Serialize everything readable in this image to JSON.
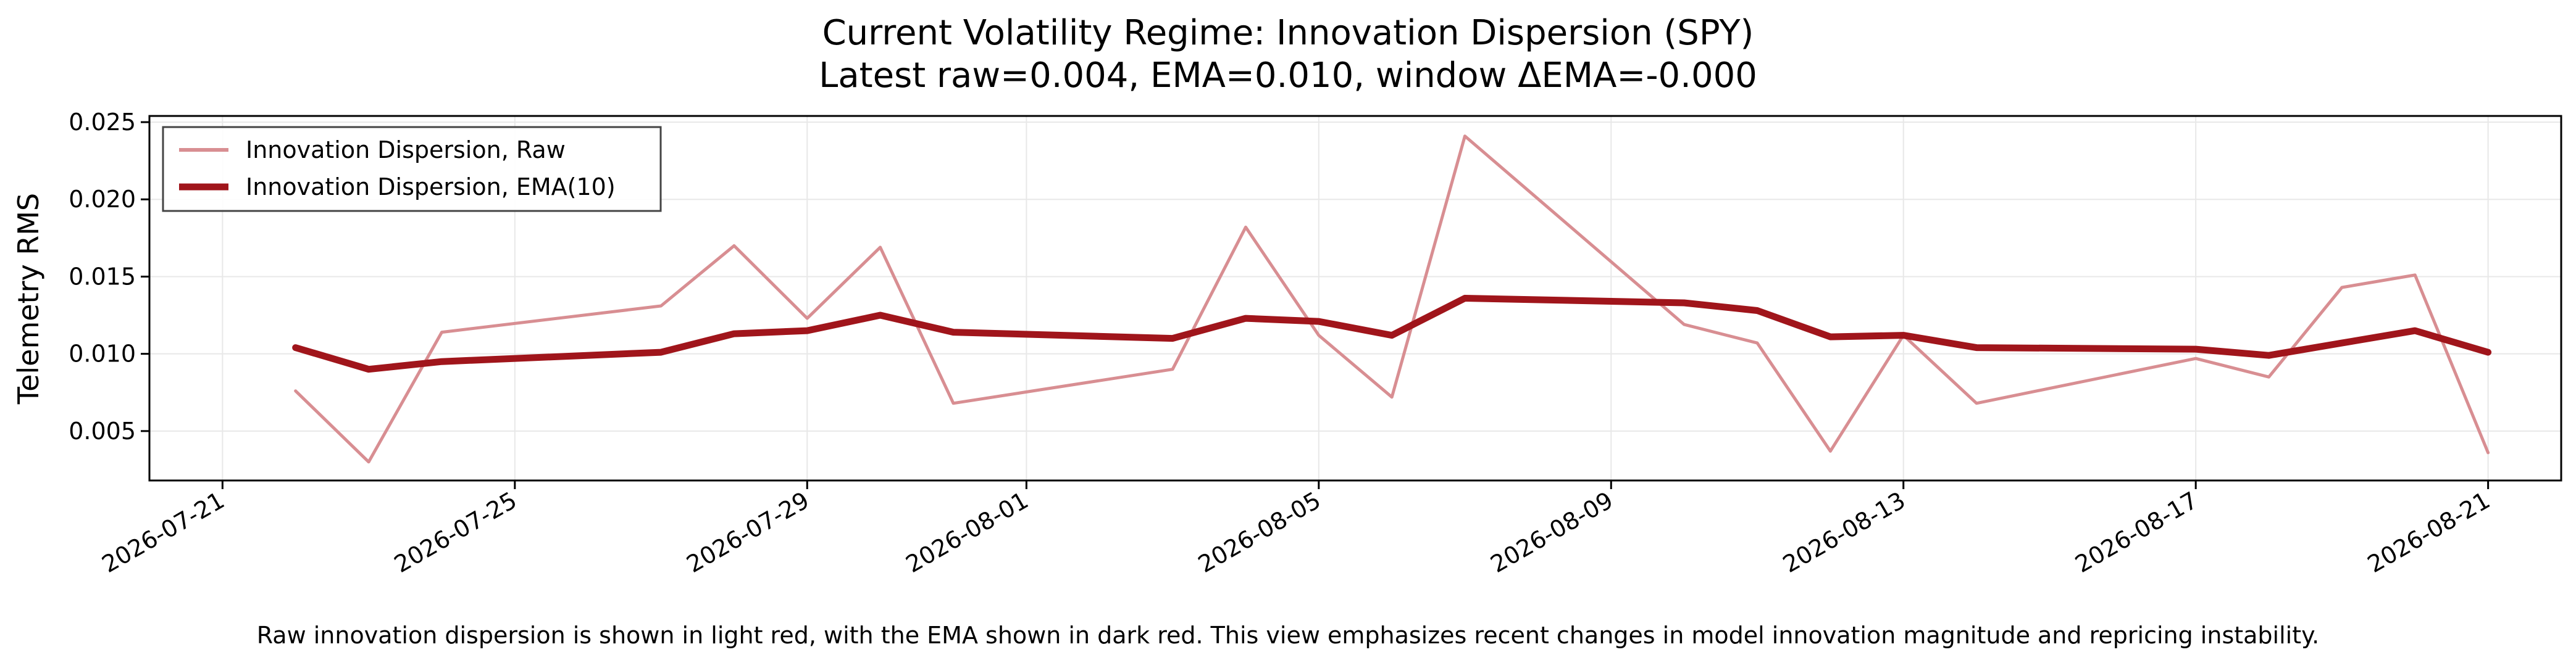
{
  "chart_data": {
    "type": "line",
    "title": "Current Volatility Regime: Innovation Dispersion (SPY)",
    "subtitle": "Latest raw=0.004, EMA=0.010, window ΔEMA=-0.000",
    "ylabel": "Telemetry RMS",
    "xlabel": "",
    "x_axis_type": "date",
    "xlim": [
      "2026-07-20",
      "2026-08-22"
    ],
    "ylim": [
      0.0018,
      0.0254
    ],
    "x_ticks": [
      "2026-07-21",
      "2026-07-25",
      "2026-07-29",
      "2026-08-01",
      "2026-08-05",
      "2026-08-09",
      "2026-08-13",
      "2026-08-17",
      "2026-08-21"
    ],
    "y_ticks": [
      "0.005",
      "0.010",
      "0.015",
      "0.020",
      "0.025"
    ],
    "grid": true,
    "legend_position": "top-left",
    "series": [
      {
        "name": "Innovation Dispersion, Raw",
        "color": "#d88e92",
        "x": [
          "2026-07-22",
          "2026-07-23",
          "2026-07-24",
          "2026-07-27",
          "2026-07-28",
          "2026-07-29",
          "2026-07-30",
          "2026-07-31",
          "2026-08-03",
          "2026-08-04",
          "2026-08-05",
          "2026-08-06",
          "2026-08-07",
          "2026-08-10",
          "2026-08-11",
          "2026-08-12",
          "2026-08-13",
          "2026-08-14",
          "2026-08-17",
          "2026-08-18",
          "2026-08-19",
          "2026-08-20",
          "2026-08-21"
        ],
        "values": [
          0.0076,
          0.003,
          0.0114,
          0.0131,
          0.017,
          0.0123,
          0.0169,
          0.0068,
          0.009,
          0.0182,
          0.0112,
          0.0072,
          0.0241,
          0.0119,
          0.0107,
          0.0037,
          0.0112,
          0.0068,
          0.0097,
          0.0085,
          0.0143,
          0.0151,
          0.0036
        ]
      },
      {
        "name": "Innovation Dispersion, EMA(10)",
        "color": "#a0151b",
        "x": [
          "2026-07-22",
          "2026-07-23",
          "2026-07-24",
          "2026-07-27",
          "2026-07-28",
          "2026-07-29",
          "2026-07-30",
          "2026-07-31",
          "2026-08-03",
          "2026-08-04",
          "2026-08-05",
          "2026-08-06",
          "2026-08-07",
          "2026-08-10",
          "2026-08-11",
          "2026-08-12",
          "2026-08-13",
          "2026-08-14",
          "2026-08-17",
          "2026-08-18",
          "2026-08-19",
          "2026-08-20",
          "2026-08-21"
        ],
        "values": [
          0.0104,
          0.009,
          0.0095,
          0.0101,
          0.0113,
          0.0115,
          0.0125,
          0.0114,
          0.011,
          0.0123,
          0.0121,
          0.0112,
          0.0136,
          0.0133,
          0.0128,
          0.0111,
          0.0112,
          0.0104,
          0.0103,
          0.0099,
          0.0107,
          0.0115,
          0.0101
        ]
      }
    ],
    "caption": "Raw innovation dispersion is shown in light red, with the EMA shown in dark red. This view emphasizes recent changes in model innovation magnitude and repricing instability."
  }
}
